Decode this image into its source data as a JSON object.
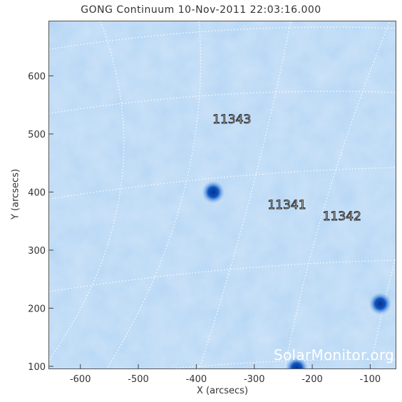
{
  "title": "GONG Continuum 10-Nov-2011 22:03:16.000",
  "axes": {
    "xlabel": "X (arcsecs)",
    "ylabel": "Y (arcsecs)",
    "x_ticks": [
      "-600",
      "-500",
      "-400",
      "-300",
      "-200",
      "-100"
    ],
    "y_ticks": [
      "100",
      "200",
      "300",
      "400",
      "500",
      "600"
    ],
    "x_range": [
      -655,
      -55
    ],
    "y_range": [
      95,
      695
    ]
  },
  "regions": [
    {
      "label": "11343",
      "x": -340,
      "y": 525
    },
    {
      "label": "11341",
      "x": -245,
      "y": 377
    },
    {
      "label": "11342",
      "x": -150,
      "y": 358
    }
  ],
  "sunspots": [
    {
      "x": -372,
      "y": 401
    },
    {
      "x": -84,
      "y": 209
    },
    {
      "x": -228,
      "y": 98
    }
  ],
  "watermark": "SolarMonitor.org",
  "colors": {
    "disk": "#b9d8f5",
    "sunspot": "#0a5fc7",
    "grid": "#ffffff"
  }
}
